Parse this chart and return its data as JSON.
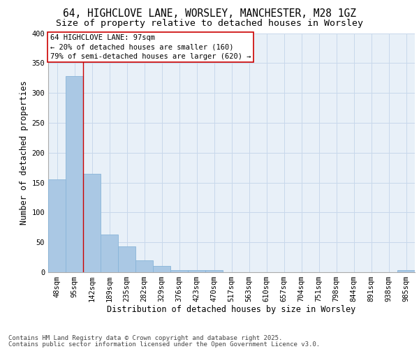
{
  "title1": "64, HIGHCLOVE LANE, WORSLEY, MANCHESTER, M28 1GZ",
  "title2": "Size of property relative to detached houses in Worsley",
  "xlabel": "Distribution of detached houses by size in Worsley",
  "ylabel": "Number of detached properties",
  "categories": [
    "48sqm",
    "95sqm",
    "142sqm",
    "189sqm",
    "235sqm",
    "282sqm",
    "329sqm",
    "376sqm",
    "423sqm",
    "470sqm",
    "517sqm",
    "563sqm",
    "610sqm",
    "657sqm",
    "704sqm",
    "751sqm",
    "798sqm",
    "844sqm",
    "891sqm",
    "938sqm",
    "985sqm"
  ],
  "values": [
    155,
    328,
    165,
    63,
    43,
    20,
    10,
    4,
    4,
    4,
    0,
    0,
    0,
    0,
    0,
    0,
    0,
    0,
    0,
    0,
    3
  ],
  "bar_color": "#aac8e4",
  "bar_edge_color": "#88b4d8",
  "vline_x": 1.5,
  "vline_color": "#cc0000",
  "annotation_text": "64 HIGHCLOVE LANE: 97sqm\n← 20% of detached houses are smaller (160)\n79% of semi-detached houses are larger (620) →",
  "annotation_box_color": "#ffffff",
  "annotation_box_edge_color": "#cc0000",
  "ylim": [
    0,
    400
  ],
  "yticks": [
    0,
    50,
    100,
    150,
    200,
    250,
    300,
    350,
    400
  ],
  "grid_color": "#c8d8eb",
  "background_color": "#e8f0f8",
  "footer_line1": "Contains HM Land Registry data © Crown copyright and database right 2025.",
  "footer_line2": "Contains public sector information licensed under the Open Government Licence v3.0.",
  "title_fontsize": 10.5,
  "subtitle_fontsize": 9.5,
  "axis_label_fontsize": 8.5,
  "tick_fontsize": 7.5,
  "annotation_fontsize": 7.5,
  "footer_fontsize": 6.5
}
